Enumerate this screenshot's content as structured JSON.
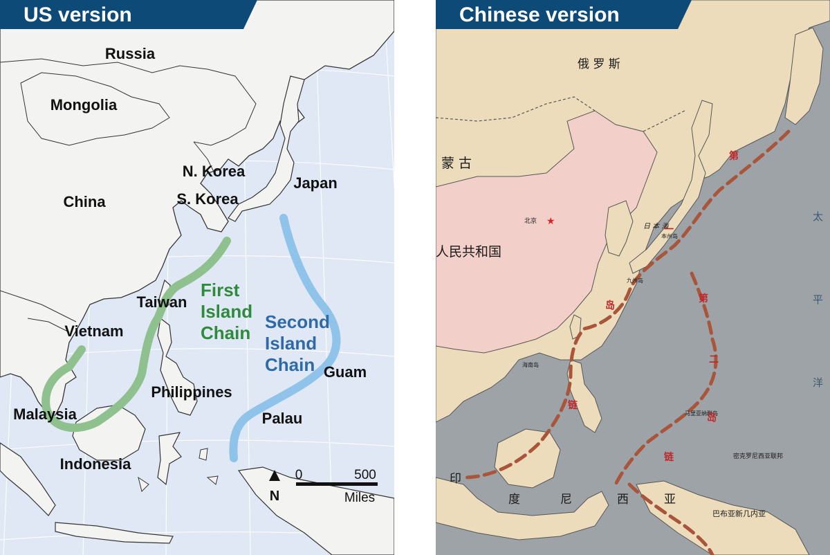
{
  "colors": {
    "tab_bg": "#0d4a78",
    "us_sea": "#dfe8f4",
    "us_land": "#f3f3f1",
    "first_chain": "#8fc18f",
    "second_chain": "#8fc3ea",
    "first_chain_text": "#2e8b3c",
    "second_chain_text": "#2f6aa8",
    "cn_sea": "#9ea3a8",
    "cn_land": "#ecdcbc",
    "cn_prc": "#f2cfc8",
    "cn_chain": "#a8553a"
  },
  "us_map": {
    "title": "US version",
    "countries": {
      "russia": "Russia",
      "mongolia": "Mongolia",
      "china": "China",
      "n_korea": "N. Korea",
      "s_korea": "S. Korea",
      "japan": "Japan",
      "taiwan": "Taiwan",
      "vietnam": "Vietnam",
      "philippines": "Philippines",
      "malaysia": "Malaysia",
      "indonesia": "Indonesia",
      "guam": "Guam",
      "palau": "Palau"
    },
    "first_chain": [
      "First",
      "Island",
      "Chain"
    ],
    "second_chain": [
      "Second",
      "Island",
      "Chain"
    ],
    "north": "N",
    "scale": {
      "zero": "0",
      "max": "500",
      "unit": "Miles"
    }
  },
  "cn_map": {
    "title": "Chinese version",
    "labels": {
      "russia": "俄 罗 斯",
      "mongolia": "蒙 古",
      "prc": "人民共和国",
      "beijing": "北京",
      "sea_of_japan": "日 本 海",
      "pacific_1": "太",
      "pacific_2": "平",
      "pacific_3": "洋",
      "indonesia_1": "印",
      "indonesia_2": "度",
      "indonesia_3": "尼",
      "indonesia_4": "西",
      "indonesia_5": "亚",
      "png": "巴布亚新几内亚",
      "honshu": "本州岛",
      "kyushu": "九州岛",
      "hainan": "海南岛",
      "mariana": "马里亚纳群岛",
      "micronesia": "密克罗尼西亚联邦",
      "chain1_a": "第",
      "chain1_b": "一",
      "chain1_c": "岛",
      "chain1_d": "链",
      "chain2_a": "第",
      "chain2_b": "二",
      "chain2_c": "岛",
      "chain2_d": "链"
    }
  }
}
